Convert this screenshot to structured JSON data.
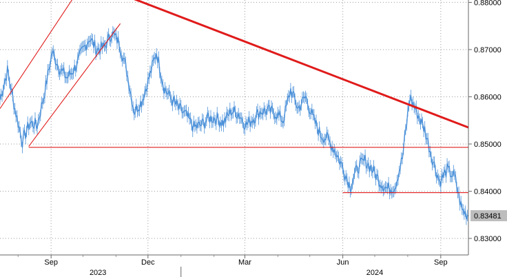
{
  "chart_data": {
    "type": "line",
    "title": "",
    "xlabel": "",
    "ylabel": "",
    "y_ticks": [
      "0.88000",
      "0.87000",
      "0.86000",
      "0.85000",
      "0.84000",
      "0.83000"
    ],
    "ylim": [
      0.8265,
      0.8805
    ],
    "x_month_ticks": [
      {
        "date": "2023-09-01",
        "label": "Sep"
      },
      {
        "date": "2023-12-01",
        "label": "Dec"
      },
      {
        "date": "2024-03-01",
        "label": "Mar"
      },
      {
        "date": "2024-06-01",
        "label": "Jun"
      },
      {
        "date": "2024-09-01",
        "label": "Sep"
      }
    ],
    "x_year_labels": [
      {
        "date": "2023-10-15",
        "label": "2023"
      },
      {
        "date": "2024-07-01",
        "label": "2024"
      }
    ],
    "xlim": [
      "2023-07-15",
      "2024-09-27"
    ],
    "last_value_label": "0.83481",
    "last_value": 0.83481,
    "grid": true,
    "series": [
      {
        "color": "#4a90d9",
        "x": [
          "2023-07-15",
          "2023-07-22",
          "2023-07-29",
          "2023-08-05",
          "2023-08-12",
          "2023-08-19",
          "2023-08-26",
          "2023-09-02",
          "2023-09-09",
          "2023-09-16",
          "2023-09-23",
          "2023-09-30",
          "2023-10-07",
          "2023-10-14",
          "2023-10-21",
          "2023-10-28",
          "2023-11-04",
          "2023-11-11",
          "2023-11-18",
          "2023-11-25",
          "2023-12-02",
          "2023-12-09",
          "2023-12-16",
          "2023-12-23",
          "2023-12-30",
          "2024-01-06",
          "2024-01-13",
          "2024-01-20",
          "2024-01-27",
          "2024-02-03",
          "2024-02-10",
          "2024-02-17",
          "2024-02-24",
          "2024-03-02",
          "2024-03-09",
          "2024-03-16",
          "2024-03-23",
          "2024-03-30",
          "2024-04-06",
          "2024-04-13",
          "2024-04-20",
          "2024-04-27",
          "2024-05-04",
          "2024-05-11",
          "2024-05-18",
          "2024-05-25",
          "2024-06-01",
          "2024-06-08",
          "2024-06-15",
          "2024-06-22",
          "2024-06-29",
          "2024-07-06",
          "2024-07-13",
          "2024-07-20",
          "2024-07-27",
          "2024-08-03",
          "2024-08-10",
          "2024-08-17",
          "2024-08-24",
          "2024-08-31",
          "2024-09-07",
          "2024-09-14",
          "2024-09-21",
          "2024-09-27"
        ],
        "y": [
          0.8595,
          0.8655,
          0.8575,
          0.8505,
          0.8545,
          0.854,
          0.861,
          0.8695,
          0.866,
          0.864,
          0.866,
          0.8695,
          0.8725,
          0.87,
          0.8705,
          0.8735,
          0.8715,
          0.8655,
          0.857,
          0.859,
          0.864,
          0.8695,
          0.862,
          0.8595,
          0.8575,
          0.856,
          0.8535,
          0.854,
          0.8555,
          0.8555,
          0.8545,
          0.857,
          0.8565,
          0.854,
          0.8555,
          0.857,
          0.857,
          0.8565,
          0.855,
          0.8615,
          0.8575,
          0.86,
          0.8555,
          0.852,
          0.851,
          0.8485,
          0.845,
          0.841,
          0.845,
          0.8465,
          0.8445,
          0.842,
          0.8405,
          0.841,
          0.847,
          0.86,
          0.8565,
          0.853,
          0.847,
          0.842,
          0.8445,
          0.843,
          0.836,
          0.8348
        ]
      }
    ],
    "annotations": [
      {
        "type": "trendline",
        "from": {
          "date": "2023-08-05",
          "value": 0.8898
        },
        "to": {
          "date": "2024-09-27",
          "value": 0.8535
        }
      },
      {
        "type": "channel",
        "from": {
          "date": "2023-08-11",
          "value": 0.8495
        },
        "to": {
          "date": "2023-11-05",
          "value": 0.8755
        }
      },
      {
        "type": "channel",
        "from": {
          "date": "2023-07-15",
          "value": 0.8575
        },
        "to": {
          "date": "2023-10-17",
          "value": 0.8895
        }
      },
      {
        "type": "horizontal",
        "value": 0.8493,
        "from": "2023-08-11",
        "to": "2024-09-27"
      },
      {
        "type": "horizontal",
        "value": 0.8397,
        "from": "2024-06-01",
        "to": "2024-09-27"
      }
    ]
  }
}
